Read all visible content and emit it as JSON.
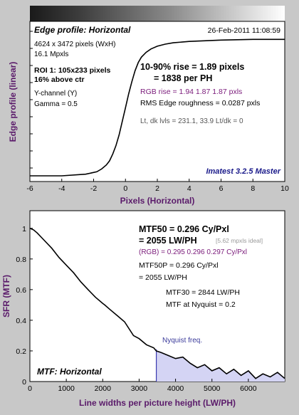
{
  "colors": {
    "page_bg": "#c8c8c8",
    "plot_bg": "#ffffff",
    "axis_label": "#5a1a6a",
    "curve": "#000000",
    "rgb_text": "#7a1a7a",
    "ideal_text": "#9a9a9a",
    "gray_text": "#555555",
    "nyquist_fill": "#d4d4f4",
    "nyquist_line": "#3a3ab0",
    "nyquist_text": "#3a3a9a",
    "brand_text": "#1a1a8a"
  },
  "chart_data": [
    {
      "type": "line",
      "title": "Edge profile: Horizontal",
      "date": "26-Feb-2011 11:08:59",
      "xlabel": "Pixels (Horizontal)",
      "ylabel": "Edge profile (linear)",
      "xlim": [
        -6,
        10
      ],
      "xticks": [
        -6,
        -4,
        -2,
        0,
        2,
        4,
        6,
        8,
        10
      ],
      "ylim": [
        0,
        1.08
      ],
      "grid": false,
      "info": {
        "dims": "4624 x 3472 pixels (WxH)",
        "mpxls": "16.1 Mpxls",
        "roi": "ROI 1:  105x233 pixels",
        "roi_pos": "16% above ctr",
        "channel": "Y-channel  (Y)",
        "gamma": "Gamma = 0.5",
        "rise": "10-90% rise = 1.89 pixels",
        "per_ph": "= 1838 per PH",
        "rgb_rise": "RGB rise = 1.94  1.87  1.87 pxls",
        "roughness": "RMS Edge roughness = 0.0287 pxls",
        "levels": "Lt, dk lvls = 231.1, 33.9   Lt/dk = 0",
        "brand": "Imatest 3.2.5 Master"
      },
      "series": [
        {
          "x": [
            -6,
            -4,
            -2.5,
            -1.8,
            -1.5,
            -1.2,
            -1.0,
            -0.8,
            -0.6,
            -0.4,
            -0.2,
            0,
            0.2,
            0.4,
            0.6,
            0.8,
            1.0,
            1.3,
            1.6,
            2.0,
            2.5,
            3.0,
            4.0,
            6.0,
            8.0,
            10.0
          ],
          "y": [
            0.0,
            0.0,
            0.012,
            0.03,
            0.05,
            0.08,
            0.11,
            0.16,
            0.22,
            0.3,
            0.4,
            0.5,
            0.6,
            0.69,
            0.77,
            0.83,
            0.87,
            0.905,
            0.93,
            0.95,
            0.965,
            0.975,
            0.985,
            0.995,
            1.0,
            1.0
          ]
        }
      ]
    },
    {
      "type": "line",
      "title": "MTF: Horizontal",
      "xlabel": "Line widths per picture height (LW/PH)",
      "ylabel": "SFR (MTF)",
      "xlim": [
        0,
        7000
      ],
      "xticks": [
        0,
        1000,
        2000,
        3000,
        4000,
        5000,
        6000
      ],
      "ylim": [
        0,
        1.05
      ],
      "yticks": [
        0,
        0.2,
        0.4,
        0.6,
        0.8,
        1
      ],
      "ytick_labels": [
        "0",
        "0.2",
        "0.4",
        "0.6",
        "0.8",
        "1"
      ],
      "grid": false,
      "nyquist_label": "Nyquist freq.",
      "nyquist_x": 3472,
      "info": {
        "mtf50": "MTF50 = 0.296 Cy/Pxl",
        "mtf50_lwph": "= 2055 LW/PH",
        "ideal": "[5.62 mpxls ideal]",
        "rgb": "(RGB) = 0.295  0.296  0.297 Cy/Pxl",
        "mtf50p": "MTF50P = 0.296 Cy/Pxl",
        "mtf50p_lwph": "= 2055 LW/PH",
        "mtf30": "MTF30 = 2844 LW/PH",
        "nyq": "MTF at Nyquist = 0.2"
      },
      "series": [
        {
          "x": [
            0,
            100,
            200,
            400,
            600,
            800,
            1000,
            1200,
            1400,
            1600,
            1800,
            2000,
            2055,
            2200,
            2400,
            2600,
            2844,
            3000,
            3200,
            3400,
            3472,
            3600,
            3800,
            4000,
            4200,
            4400,
            4600,
            4800,
            5000,
            5200,
            5400,
            5600,
            5800,
            6000,
            6200,
            6400,
            6600,
            6800,
            7000
          ],
          "y": [
            1.0,
            0.99,
            0.97,
            0.92,
            0.87,
            0.81,
            0.76,
            0.71,
            0.65,
            0.6,
            0.55,
            0.51,
            0.5,
            0.47,
            0.43,
            0.39,
            0.3,
            0.28,
            0.24,
            0.22,
            0.2,
            0.19,
            0.17,
            0.15,
            0.16,
            0.12,
            0.09,
            0.11,
            0.07,
            0.09,
            0.05,
            0.08,
            0.04,
            0.07,
            0.02,
            0.05,
            0.03,
            0.06,
            0.02
          ]
        }
      ]
    }
  ]
}
